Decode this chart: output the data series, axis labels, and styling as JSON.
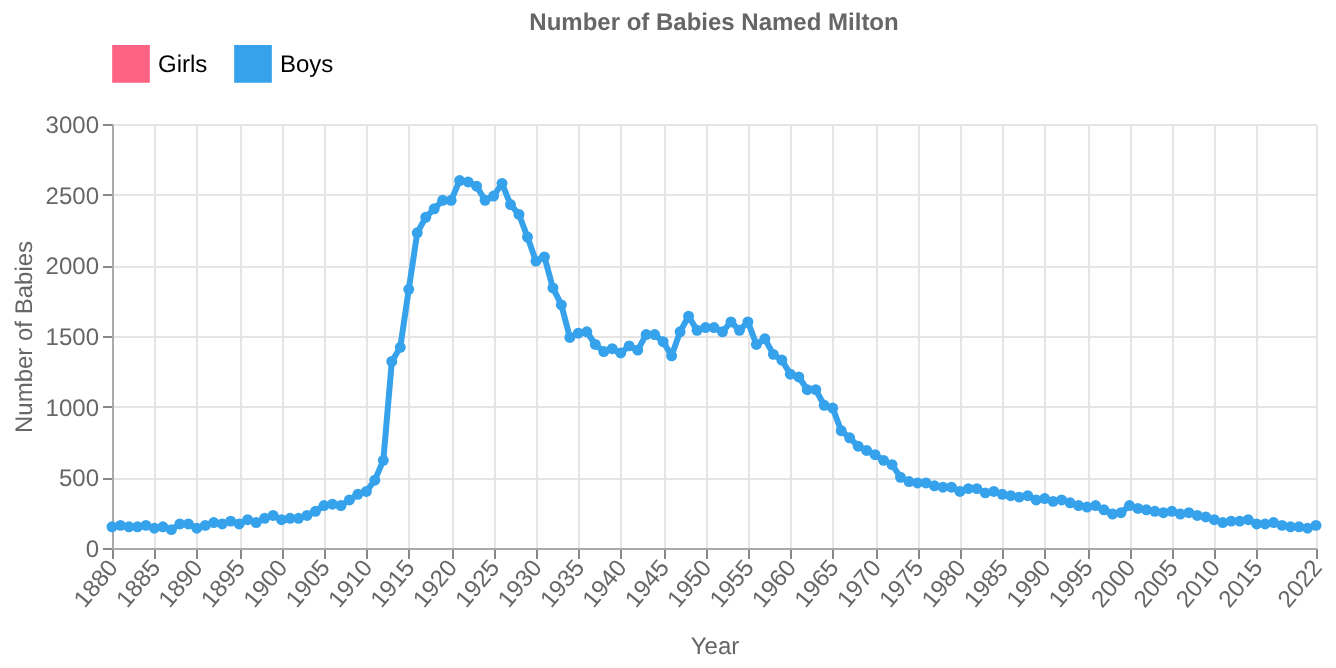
{
  "chart_data": {
    "type": "line",
    "title": "Number of Babies Named Milton",
    "xlabel": "Year",
    "ylabel": "Number of Babies",
    "x": [
      1880,
      1881,
      1882,
      1883,
      1884,
      1885,
      1886,
      1887,
      1888,
      1889,
      1890,
      1891,
      1892,
      1893,
      1894,
      1895,
      1896,
      1897,
      1898,
      1899,
      1900,
      1901,
      1902,
      1903,
      1904,
      1905,
      1906,
      1907,
      1908,
      1909,
      1910,
      1911,
      1912,
      1913,
      1914,
      1915,
      1916,
      1917,
      1918,
      1919,
      1920,
      1921,
      1922,
      1923,
      1924,
      1925,
      1926,
      1927,
      1928,
      1929,
      1930,
      1931,
      1932,
      1933,
      1934,
      1935,
      1936,
      1937,
      1938,
      1939,
      1940,
      1941,
      1942,
      1943,
      1944,
      1945,
      1946,
      1947,
      1948,
      1949,
      1950,
      1951,
      1952,
      1953,
      1954,
      1955,
      1956,
      1957,
      1958,
      1959,
      1960,
      1961,
      1962,
      1963,
      1964,
      1965,
      1966,
      1967,
      1968,
      1969,
      1970,
      1971,
      1972,
      1973,
      1974,
      1975,
      1976,
      1977,
      1978,
      1979,
      1980,
      1981,
      1982,
      1983,
      1984,
      1985,
      1986,
      1987,
      1988,
      1989,
      1990,
      1991,
      1992,
      1993,
      1994,
      1995,
      1996,
      1997,
      1998,
      1999,
      2000,
      2001,
      2002,
      2003,
      2004,
      2005,
      2006,
      2007,
      2008,
      2009,
      2010,
      2011,
      2012,
      2013,
      2014,
      2015,
      2016,
      2017,
      2018,
      2019,
      2020,
      2021,
      2022
    ],
    "series": [
      {
        "name": "Girls",
        "color": "#ff6384",
        "values": [
          null,
          null,
          null,
          null,
          null,
          null,
          null,
          null,
          null,
          null,
          null,
          null,
          null,
          null,
          null,
          null,
          null,
          null,
          null,
          null,
          null,
          null,
          null,
          null,
          null,
          null,
          null,
          null,
          null,
          null,
          null,
          null,
          null,
          null,
          null,
          null,
          null,
          null,
          null,
          null,
          null,
          null,
          null,
          null,
          null,
          null,
          null,
          null,
          null,
          null,
          null,
          null,
          null,
          null,
          null,
          null,
          null,
          null,
          null,
          null,
          null,
          null,
          null,
          null,
          null,
          null,
          null,
          null,
          null,
          null,
          null,
          null,
          null,
          null,
          null,
          null,
          null,
          null,
          null,
          null,
          null,
          null,
          null,
          null,
          null,
          null,
          null,
          null,
          null,
          null,
          null,
          null,
          null,
          null,
          null,
          null,
          null,
          null,
          null,
          null,
          null,
          null,
          null,
          null,
          null,
          null,
          null,
          null,
          null,
          null,
          null,
          null,
          null,
          null,
          null,
          null,
          null,
          null,
          null,
          null,
          null,
          null,
          null,
          null,
          null,
          null,
          null,
          null,
          null,
          null,
          null,
          null,
          null,
          null,
          null,
          null,
          null,
          null,
          null,
          null,
          null,
          null,
          null
        ]
      },
      {
        "name": "Boys",
        "color": "#36a2eb",
        "values": [
          150,
          160,
          150,
          150,
          160,
          140,
          150,
          130,
          170,
          170,
          140,
          160,
          180,
          170,
          190,
          170,
          200,
          180,
          210,
          230,
          200,
          210,
          210,
          230,
          260,
          300,
          310,
          300,
          340,
          380,
          400,
          480,
          620,
          1320,
          1420,
          1830,
          2230,
          2340,
          2400,
          2460,
          2460,
          2600,
          2590,
          2560,
          2460,
          2490,
          2580,
          2430,
          2360,
          2200,
          2030,
          2060,
          1840,
          1720,
          1490,
          1520,
          1530,
          1440,
          1390,
          1410,
          1380,
          1430,
          1400,
          1510,
          1510,
          1460,
          1360,
          1530,
          1640,
          1540,
          1560,
          1560,
          1530,
          1600,
          1540,
          1600,
          1440,
          1480,
          1370,
          1330,
          1230,
          1210,
          1120,
          1120,
          1010,
          990,
          830,
          780,
          720,
          690,
          660,
          620,
          590,
          500,
          470,
          460,
          460,
          440,
          430,
          430,
          400,
          420,
          420,
          390,
          400,
          380,
          370,
          360,
          370,
          340,
          350,
          330,
          340,
          320,
          300,
          290,
          300,
          270,
          240,
          250,
          300,
          280,
          270,
          260,
          250,
          260,
          240,
          250,
          230,
          220,
          200,
          180,
          190,
          190,
          200,
          170,
          170,
          180,
          160,
          150,
          150,
          140,
          160
        ]
      }
    ],
    "xlim": [
      1880,
      2022
    ],
    "xticks": [
      1880,
      1885,
      1890,
      1895,
      1900,
      1905,
      1910,
      1915,
      1920,
      1925,
      1930,
      1935,
      1940,
      1945,
      1950,
      1955,
      1960,
      1965,
      1970,
      1975,
      1980,
      1985,
      1990,
      1995,
      2000,
      2005,
      2010,
      2015,
      2022
    ],
    "ylim": [
      0,
      3000
    ],
    "yticks": [
      0,
      500,
      1000,
      1500,
      2000,
      2500,
      3000
    ],
    "grid": true,
    "legend": "top",
    "marker": "circle",
    "line_style": "solid"
  }
}
